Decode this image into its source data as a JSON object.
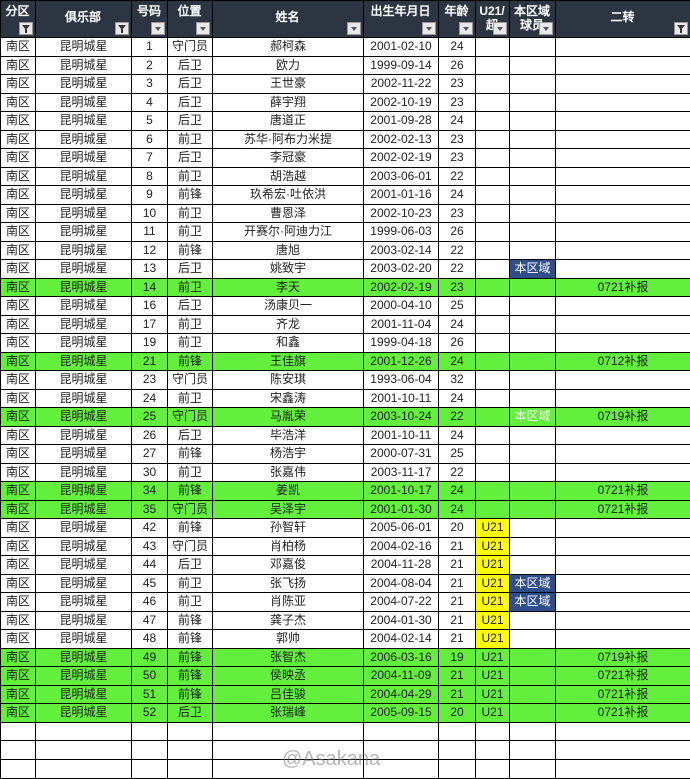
{
  "headers": [
    {
      "label": "分区",
      "filter": "funnel"
    },
    {
      "label": "俱乐部",
      "filter": "funnel"
    },
    {
      "label": "号码",
      "filter": "dropdown"
    },
    {
      "label": "位置",
      "filter": "dropdown"
    },
    {
      "label": "姓名",
      "filter": "dropdown"
    },
    {
      "label": "出生年月日",
      "filter": "dropdown"
    },
    {
      "label": "年龄",
      "filter": "dropdown"
    },
    {
      "label": "U21/超",
      "filter": "dropdown"
    },
    {
      "label": "本区域球员",
      "filter": "dropdown"
    },
    {
      "label": "二转",
      "filter": "funnel"
    }
  ],
  "region": "南区",
  "club": "昆明城星",
  "colors": {
    "header_bg": "#2d3542",
    "green_row": "#62f03c",
    "u21": "#ffff00",
    "local": "#2f4f8c"
  },
  "rows": [
    [
      "1",
      "守门员",
      "郝柯森",
      "2001-02-10",
      "24",
      "",
      "",
      "",
      false
    ],
    [
      "2",
      "后卫",
      "欧力",
      "1999-09-14",
      "26",
      "",
      "",
      "",
      false
    ],
    [
      "3",
      "后卫",
      "王世豪",
      "2002-11-22",
      "23",
      "",
      "",
      "",
      false
    ],
    [
      "4",
      "后卫",
      "薛宇翔",
      "2002-10-19",
      "23",
      "",
      "",
      "",
      false
    ],
    [
      "5",
      "后卫",
      "唐道正",
      "2001-09-28",
      "24",
      "",
      "",
      "",
      false
    ],
    [
      "6",
      "前卫",
      "苏华·阿布力米提",
      "2002-02-13",
      "23",
      "",
      "",
      "",
      false
    ],
    [
      "7",
      "后卫",
      "李冠豪",
      "2002-02-19",
      "23",
      "",
      "",
      "",
      false
    ],
    [
      "8",
      "前卫",
      "胡浩越",
      "2003-06-01",
      "22",
      "",
      "",
      "",
      false
    ],
    [
      "9",
      "前锋",
      "玖希宏·吐依洪",
      "2001-01-16",
      "24",
      "",
      "",
      "",
      false
    ],
    [
      "10",
      "前卫",
      "曹恩泽",
      "2002-10-23",
      "23",
      "",
      "",
      "",
      false
    ],
    [
      "11",
      "前卫",
      "开赛尔·阿迪力江",
      "1999-06-03",
      "26",
      "",
      "",
      "",
      false
    ],
    [
      "12",
      "前锋",
      "唐旭",
      "2003-02-14",
      "22",
      "",
      "",
      "",
      false
    ],
    [
      "13",
      "后卫",
      "姚致宇",
      "2003-02-20",
      "22",
      "",
      "本区域",
      "",
      false
    ],
    [
      "14",
      "前卫",
      "李天",
      "2002-02-19",
      "23",
      "",
      "",
      "0721补报",
      true
    ],
    [
      "16",
      "后卫",
      "汤康贝一",
      "2000-04-10",
      "25",
      "",
      "",
      "",
      false
    ],
    [
      "17",
      "前卫",
      "齐龙",
      "2001-11-04",
      "24",
      "",
      "",
      "",
      false
    ],
    [
      "19",
      "前卫",
      "和鑫",
      "1999-04-18",
      "26",
      "",
      "",
      "",
      false
    ],
    [
      "21",
      "前锋",
      "王佳旗",
      "2001-12-26",
      "24",
      "",
      "",
      "0712补报",
      true
    ],
    [
      "23",
      "守门员",
      "陈安琪",
      "1993-06-04",
      "32",
      "",
      "",
      "",
      false
    ],
    [
      "24",
      "前卫",
      "宋鑫涛",
      "2001-10-11",
      "24",
      "",
      "",
      "",
      false
    ],
    [
      "25",
      "守门员",
      "马胤荣",
      "2003-10-24",
      "22",
      "",
      "本区域",
      "0719补报",
      true
    ],
    [
      "26",
      "后卫",
      "毕浩洋",
      "2001-10-11",
      "24",
      "",
      "",
      "",
      false
    ],
    [
      "27",
      "前锋",
      "杨浩宇",
      "2000-07-31",
      "25",
      "",
      "",
      "",
      false
    ],
    [
      "30",
      "前卫",
      "张嘉伟",
      "2003-11-17",
      "22",
      "",
      "",
      "",
      false
    ],
    [
      "34",
      "前锋",
      "姜凯",
      "2001-10-17",
      "24",
      "",
      "",
      "0721补报",
      true
    ],
    [
      "35",
      "守门员",
      "吴泽宇",
      "2001-01-30",
      "24",
      "",
      "",
      "0721补报",
      true
    ],
    [
      "42",
      "前锋",
      "孙智轩",
      "2005-06-01",
      "20",
      "U21",
      "",
      "",
      false
    ],
    [
      "43",
      "守门员",
      "肖柏杨",
      "2004-02-16",
      "21",
      "U21",
      "",
      "",
      false
    ],
    [
      "44",
      "后卫",
      "邓嘉俊",
      "2004-11-28",
      "21",
      "U21",
      "",
      "",
      false
    ],
    [
      "45",
      "前卫",
      "张飞扬",
      "2004-08-04",
      "21",
      "U21",
      "本区域",
      "",
      false
    ],
    [
      "46",
      "前卫",
      "肖陈亚",
      "2004-07-22",
      "21",
      "U21",
      "本区域",
      "",
      false
    ],
    [
      "47",
      "前锋",
      "龚子杰",
      "2004-01-30",
      "21",
      "U21",
      "",
      "",
      false
    ],
    [
      "48",
      "前锋",
      "郭帅",
      "2004-02-14",
      "21",
      "U21",
      "",
      "",
      false
    ],
    [
      "49",
      "前锋",
      "张智杰",
      "2006-03-16",
      "19",
      "U21",
      "",
      "0719补报",
      true
    ],
    [
      "50",
      "前锋",
      "侯映丞",
      "2004-11-09",
      "21",
      "U21",
      "",
      "0721补报",
      true
    ],
    [
      "51",
      "前锋",
      "吕佳骏",
      "2004-04-29",
      "21",
      "U21",
      "",
      "0721补报",
      true
    ],
    [
      "52",
      "后卫",
      "张瑞峰",
      "2005-09-15",
      "20",
      "U21",
      "",
      "0721补报",
      true
    ]
  ],
  "watermark": "@Asakana"
}
